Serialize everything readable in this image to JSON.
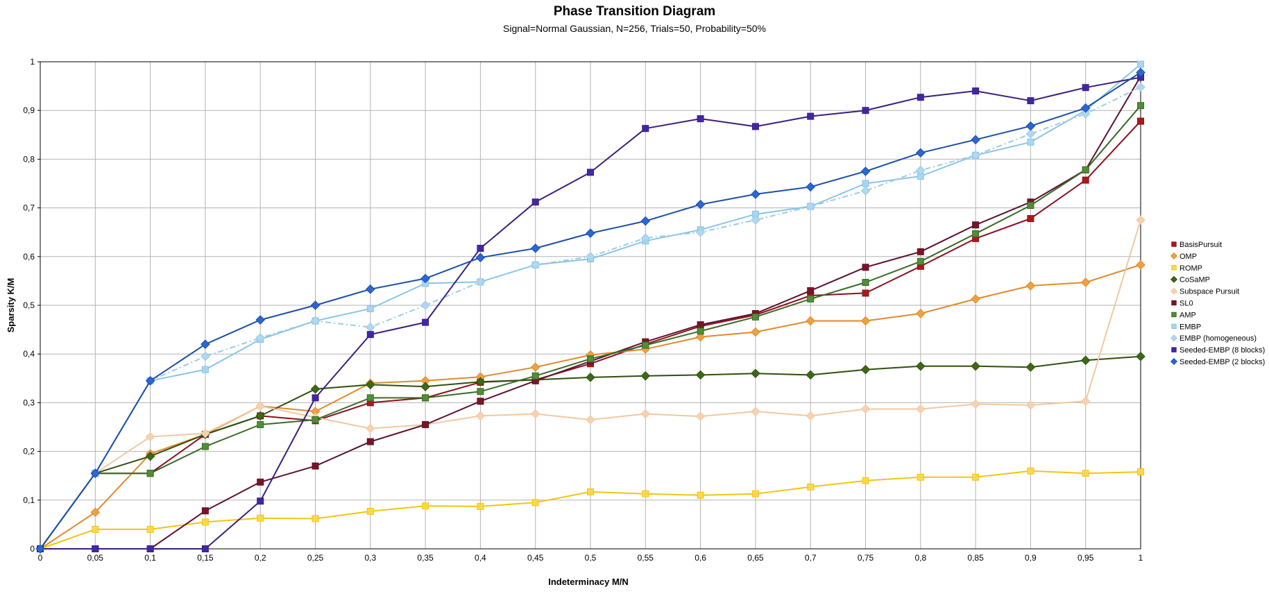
{
  "chart_data": {
    "type": "line",
    "title": "Phase Transition Diagram",
    "subtitle": "Signal=Normal Gaussian, N=256, Trials=50, Probability=50%",
    "xlabel": "Indeterminacy   M/N",
    "ylabel": "Sparsity   K/M",
    "xlim": [
      0,
      1
    ],
    "ylim": [
      0,
      1
    ],
    "grid": true,
    "legend_position": "right",
    "x": [
      0,
      0.05,
      0.1,
      0.15,
      0.2,
      0.25,
      0.3,
      0.35,
      0.4,
      0.45,
      0.5,
      0.55,
      0.6,
      0.65,
      0.7,
      0.75,
      0.8,
      0.85,
      0.9,
      0.95,
      1
    ],
    "x_tick_labels": [
      "0",
      "0,05",
      "0,1",
      "0,15",
      "0,2",
      "0,25",
      "0,3",
      "0,35",
      "0,4",
      "0,45",
      "0,5",
      "0,55",
      "0,6",
      "0,65",
      "0,7",
      "0,75",
      "0,8",
      "0,85",
      "0,9",
      "0,95",
      "1"
    ],
    "y_ticks": [
      0,
      0.1,
      0.2,
      0.3,
      0.4,
      0.5,
      0.6,
      0.7,
      0.8,
      0.9,
      1
    ],
    "y_tick_labels": [
      "0",
      "0,1",
      "0,2",
      "0,3",
      "0,4",
      "0,5",
      "0,6",
      "0,7",
      "0,8",
      "0,9",
      "1"
    ],
    "series": [
      {
        "name": "BasisPursuit",
        "color": "#8b0f1e",
        "marker_fill": "#b01818",
        "marker": "square",
        "dash": "",
        "values": [
          0,
          0.155,
          0.155,
          0.235,
          0.273,
          0.263,
          0.3,
          0.31,
          0.342,
          0.347,
          0.38,
          0.42,
          0.457,
          0.48,
          0.52,
          0.525,
          0.58,
          0.637,
          0.678,
          0.757,
          0.878
        ]
      },
      {
        "name": "OMP",
        "color": "#e08a2a",
        "marker_fill": "#f0a040",
        "marker": "diamond",
        "dash": "",
        "values": [
          0,
          0.075,
          0.195,
          0.235,
          0.293,
          0.282,
          0.34,
          0.345,
          0.353,
          0.373,
          0.398,
          0.41,
          0.435,
          0.445,
          0.468,
          0.468,
          0.483,
          0.513,
          0.54,
          0.547,
          0.583
        ]
      },
      {
        "name": "ROMP",
        "color": "#f2c414",
        "marker_fill": "#ffd84a",
        "marker": "square",
        "dash": "",
        "values": [
          0,
          0.04,
          0.04,
          0.055,
          0.063,
          0.062,
          0.077,
          0.088,
          0.087,
          0.095,
          0.117,
          0.113,
          0.11,
          0.113,
          0.127,
          0.14,
          0.147,
          0.147,
          0.16,
          0.155,
          0.158
        ]
      },
      {
        "name": "CoSaMP",
        "color": "#2f4f10",
        "marker_fill": "#3c6a16",
        "marker": "diamond",
        "dash": "",
        "values": [
          0,
          0.155,
          0.19,
          0.235,
          0.273,
          0.328,
          0.337,
          0.333,
          0.343,
          0.347,
          0.352,
          0.355,
          0.357,
          0.36,
          0.357,
          0.368,
          0.375,
          0.375,
          0.373,
          0.387,
          0.395
        ]
      },
      {
        "name": "Subspace Pursuit",
        "color": "#f2c8a0",
        "marker_fill": "#f7d2b2",
        "marker": "diamond",
        "dash": "",
        "values": [
          0,
          0.155,
          0.23,
          0.237,
          0.293,
          0.27,
          0.247,
          0.255,
          0.273,
          0.277,
          0.265,
          0.277,
          0.272,
          0.282,
          0.273,
          0.287,
          0.287,
          0.297,
          0.295,
          0.303,
          0.675
        ]
      },
      {
        "name": "SL0",
        "color": "#5c1030",
        "marker_fill": "#7a1525",
        "marker": "square",
        "dash": "",
        "values": [
          0,
          0,
          0,
          0.078,
          0.137,
          0.17,
          0.22,
          0.255,
          0.303,
          0.345,
          0.385,
          0.425,
          0.46,
          0.483,
          0.53,
          0.578,
          0.61,
          0.665,
          0.712,
          0.778,
          0.97
        ]
      },
      {
        "name": "AMP",
        "color": "#3a6a25",
        "marker_fill": "#4f8f35",
        "marker": "square",
        "dash": "",
        "values": [
          0,
          0.155,
          0.155,
          0.21,
          0.255,
          0.265,
          0.31,
          0.31,
          0.323,
          0.355,
          0.39,
          0.418,
          0.447,
          0.476,
          0.513,
          0.547,
          0.59,
          0.647,
          0.705,
          0.778,
          0.91
        ]
      },
      {
        "name": "EMBP",
        "color": "#88c4e8",
        "marker_fill": "#a8d6f0",
        "marker": "square",
        "dash": "",
        "values": [
          0,
          0.155,
          0.345,
          0.368,
          0.43,
          0.468,
          0.493,
          0.545,
          0.548,
          0.583,
          0.595,
          0.632,
          0.655,
          0.687,
          0.703,
          0.75,
          0.765,
          0.808,
          0.835,
          0.9,
          0.995
        ]
      },
      {
        "name": "EMBP (homogeneous)",
        "color": "#9ccbe6",
        "marker_fill": "#b0d8f0",
        "marker": "diamond",
        "dash": "8,4,2,4",
        "values": [
          0,
          0.155,
          0.345,
          0.395,
          0.433,
          0.468,
          0.455,
          0.5,
          0.548,
          0.583,
          0.6,
          0.638,
          0.65,
          0.675,
          0.703,
          0.735,
          0.777,
          0.808,
          0.852,
          0.893,
          0.948
        ]
      },
      {
        "name": "Seeded-EMBP (8 blocks)",
        "color": "#3a1e7c",
        "marker_fill": "#4326a8",
        "marker": "square",
        "dash": "",
        "values": [
          0,
          0,
          0,
          0,
          0.098,
          0.31,
          0.44,
          0.465,
          0.617,
          0.712,
          0.773,
          0.863,
          0.883,
          0.867,
          0.888,
          0.9,
          0.927,
          0.94,
          0.92,
          0.947,
          0.968
        ]
      },
      {
        "name": "Seeded-EMBP (2 blocks)",
        "color": "#1a4ea8",
        "marker_fill": "#2c66d8",
        "marker": "diamond",
        "dash": "",
        "values": [
          0,
          0.155,
          0.345,
          0.42,
          0.47,
          0.5,
          0.533,
          0.555,
          0.598,
          0.617,
          0.648,
          0.673,
          0.707,
          0.728,
          0.743,
          0.775,
          0.813,
          0.84,
          0.868,
          0.905,
          0.978
        ]
      }
    ]
  }
}
